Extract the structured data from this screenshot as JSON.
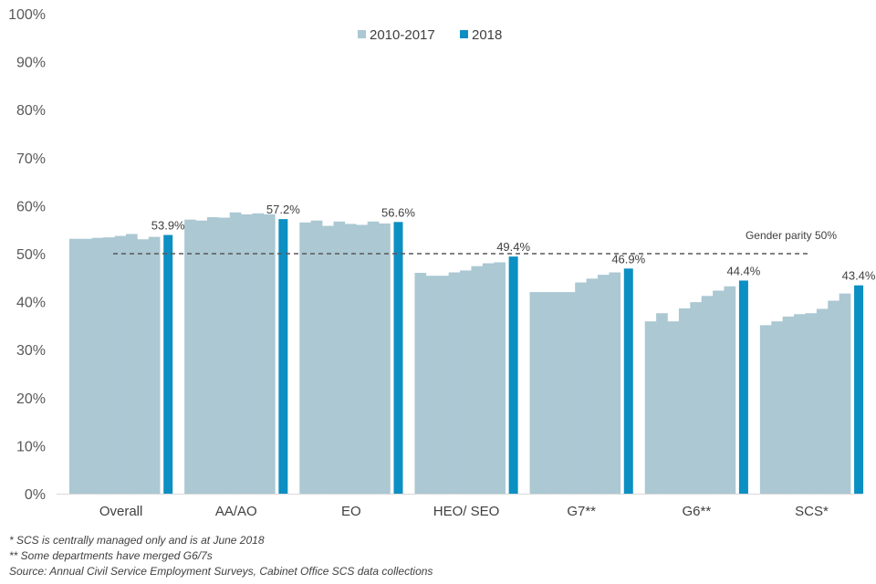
{
  "chart_data": {
    "type": "bar",
    "title": "",
    "xlabel": "",
    "ylabel": "",
    "ylim": [
      0,
      100
    ],
    "yticks": [
      "0%",
      "10%",
      "20%",
      "30%",
      "40%",
      "50%",
      "60%",
      "70%",
      "80%",
      "90%",
      "100%"
    ],
    "categories": [
      "Overall",
      "AA/AO",
      "EO",
      "HEO/ SEO",
      "G7**",
      "G6**",
      "SCS*"
    ],
    "series": [
      {
        "name": "2010-2017",
        "color": "#abc8d3",
        "years": [
          "2010",
          "2011",
          "2012",
          "2013",
          "2014",
          "2015",
          "2016",
          "2017"
        ],
        "values": [
          [
            53.1,
            53.1,
            53.3,
            53.4,
            53.7,
            54.1,
            53.0,
            53.5
          ],
          [
            57.1,
            56.9,
            57.6,
            57.5,
            58.6,
            58.2,
            58.4,
            58.2
          ],
          [
            56.5,
            56.9,
            55.8,
            56.7,
            56.2,
            56.0,
            56.7,
            56.3
          ],
          [
            46.0,
            45.4,
            45.4,
            46.1,
            46.5,
            47.4,
            48.0,
            48.2
          ],
          [
            42.0,
            42.0,
            42.0,
            42.0,
            44.0,
            44.8,
            45.6,
            46.1
          ],
          [
            35.9,
            37.6,
            35.9,
            38.6,
            39.9,
            41.2,
            42.3,
            43.2
          ],
          [
            35.1,
            35.9,
            36.9,
            37.4,
            37.6,
            38.5,
            40.2,
            41.7
          ]
        ]
      },
      {
        "name": "2018",
        "color": "#0c8fc2",
        "values": [
          53.9,
          57.2,
          56.6,
          49.4,
          46.9,
          44.4,
          43.4
        ],
        "labels": [
          "53.9%",
          "57.2%",
          "56.6%",
          "49.4%",
          "46.9%",
          "44.4%",
          "43.4%"
        ]
      }
    ],
    "reference_line": {
      "value": 50,
      "label": "Gender parity 50%"
    },
    "legend": {
      "position": "top-center",
      "entries": [
        "2010-2017",
        "2018"
      ]
    }
  },
  "notes": [
    "* SCS is centrally managed only and is at June 2018",
    "** Some departments have merged G6/7s",
    "Source: Annual Civil Service Employment Surveys, Cabinet Office SCS data collections"
  ]
}
